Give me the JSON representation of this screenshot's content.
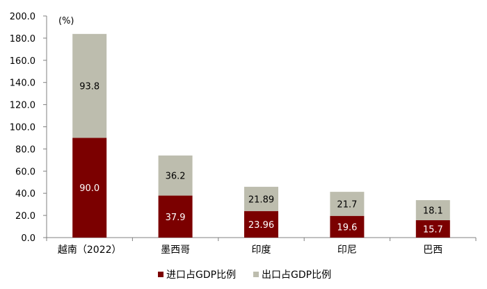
{
  "chart_data": {
    "type": "bar",
    "stacked": true,
    "unit": "(%)",
    "categories": [
      "越南（2022）",
      "墨西哥",
      "印度",
      "印尼",
      "巴西"
    ],
    "series": [
      {
        "name": "进口占GDP比例",
        "color": "#7B0000",
        "label_color": "#ffffff",
        "values": [
          90.0,
          37.9,
          23.96,
          19.6,
          15.7
        ],
        "labels": [
          "90.0",
          "37.9",
          "23.96",
          "19.6",
          "15.7"
        ]
      },
      {
        "name": "出口占GDP比例",
        "color": "#BDBDAE",
        "label_color": "#000000",
        "values": [
          93.8,
          36.2,
          21.89,
          21.7,
          18.1
        ],
        "labels": [
          "93.8",
          "36.2",
          "21.89",
          "21.7",
          "18.1"
        ]
      }
    ],
    "ylim": [
      0,
      200
    ],
    "yticks": [
      "0.0",
      "20.0",
      "40.0",
      "60.0",
      "80.0",
      "100.0",
      "120.0",
      "140.0",
      "160.0",
      "180.0",
      "200.0"
    ],
    "grid": false,
    "legend_position": "bottom"
  }
}
